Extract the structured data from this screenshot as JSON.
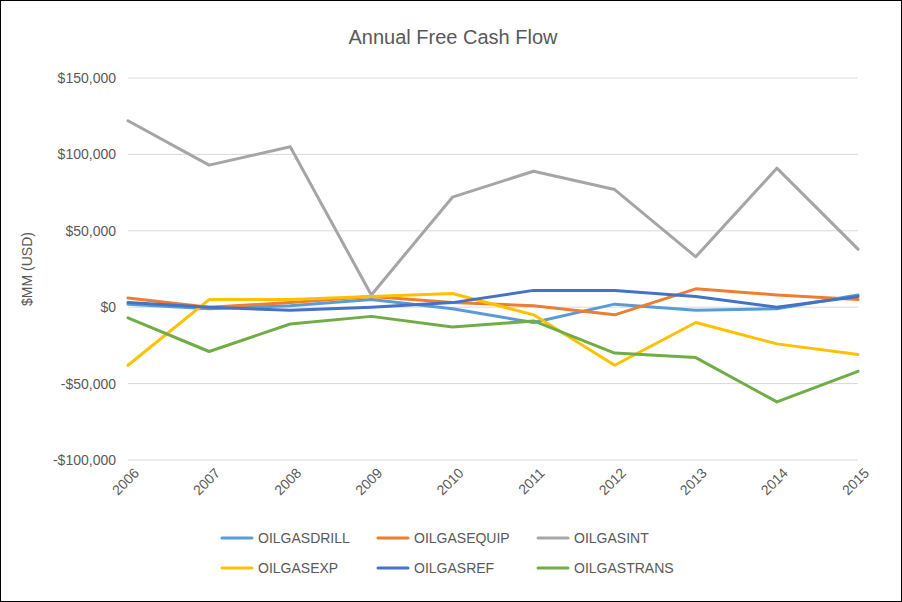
{
  "chart_data": {
    "type": "line",
    "title": "Annual Free Cash Flow",
    "y_label": "$MM (USD)",
    "categories": [
      "2006",
      "2007",
      "2008",
      "2009",
      "2010",
      "2011",
      "2012",
      "2013",
      "2014",
      "2015"
    ],
    "ylim": [
      -100000,
      150000
    ],
    "yticks": [
      {
        "value": -100000,
        "label": "-$100,000"
      },
      {
        "value": -50000,
        "label": "-$50,000"
      },
      {
        "value": 0,
        "label": "$0"
      },
      {
        "value": 50000,
        "label": "$50,000"
      },
      {
        "value": 100000,
        "label": "$100,000"
      },
      {
        "value": 150000,
        "label": "$150,000"
      }
    ],
    "grid": true,
    "legend": "bottom",
    "series": [
      {
        "name": "OILGASDRILL",
        "color": "#5b9bd5",
        "values": [
          2000,
          -1000,
          1000,
          5000,
          -1000,
          -10000,
          2000,
          -2000,
          -1000,
          8000
        ]
      },
      {
        "name": "OILGASEQUIP",
        "color": "#ed7d31",
        "values": [
          6000,
          0,
          3000,
          7000,
          3000,
          1000,
          -5000,
          12000,
          8000,
          5000
        ]
      },
      {
        "name": "OILGASINT",
        "color": "#a5a5a5",
        "values": [
          122000,
          93000,
          105000,
          8000,
          72000,
          89000,
          77000,
          33000,
          91000,
          38000
        ]
      },
      {
        "name": "OILGASEXP",
        "color": "#ffc000",
        "values": [
          -38000,
          5000,
          5000,
          7000,
          9000,
          -5000,
          -38000,
          -10000,
          -24000,
          -31000
        ]
      },
      {
        "name": "OILGASREF",
        "color": "#4472c4",
        "values": [
          3000,
          0,
          -2000,
          0,
          3000,
          11000,
          11000,
          7000,
          0,
          7000
        ]
      },
      {
        "name": "OILGASTRANS",
        "color": "#70ad47",
        "values": [
          -7000,
          -29000,
          -11000,
          -6000,
          -13000,
          -9000,
          -30000,
          -33000,
          -62000,
          -42000
        ]
      }
    ]
  }
}
